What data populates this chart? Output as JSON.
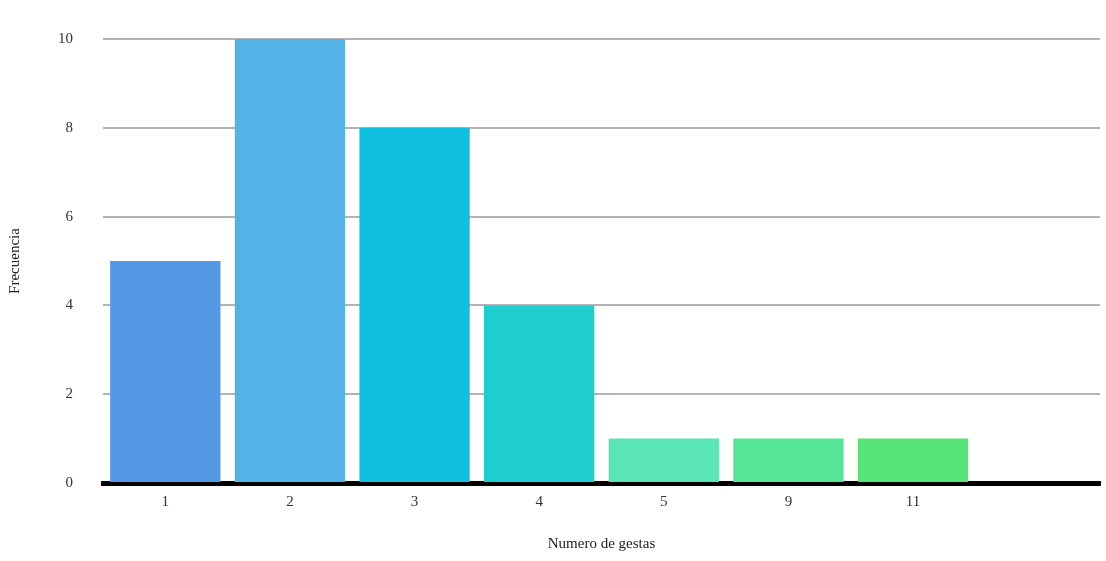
{
  "chart_data": {
    "type": "bar",
    "xlabel": "Numero de gestas",
    "ylabel": "Frecuencia",
    "categories": [
      "1",
      "2",
      "3",
      "4",
      "5",
      "9",
      "11",
      null
    ],
    "values": [
      5,
      10,
      8,
      4,
      1,
      1,
      1,
      null
    ],
    "colors": [
      "#5499e6",
      "#53b3e6",
      "#0fbfe0",
      "#1ecdcd",
      "#5ae6b4",
      "#55e597",
      "#57e57a",
      null
    ],
    "ylim": [
      0,
      10
    ],
    "yticks": [
      0,
      2,
      4,
      6,
      8,
      10
    ],
    "grid": "y",
    "legend": false
  }
}
